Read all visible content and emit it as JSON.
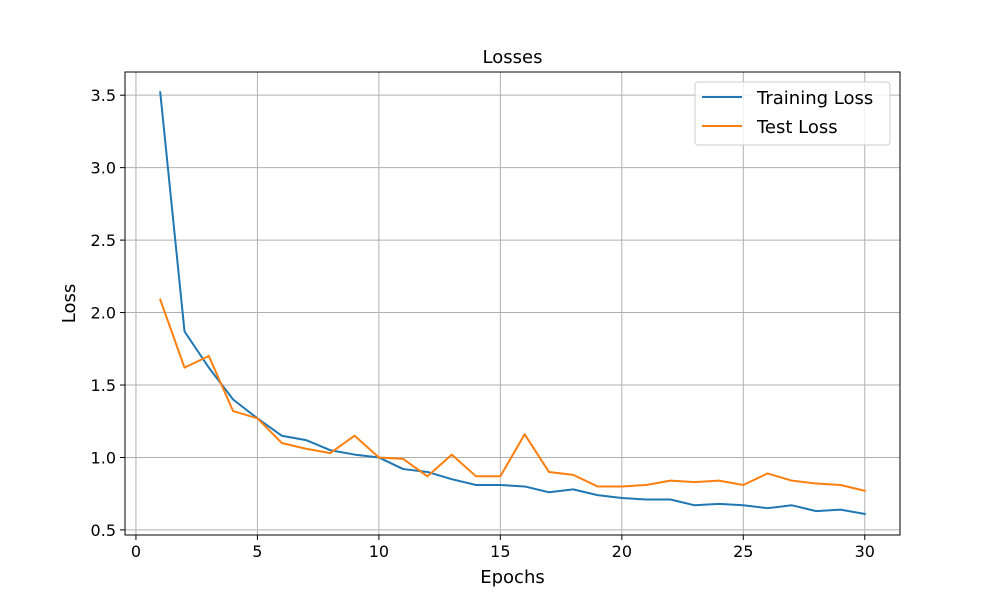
{
  "chart_data": {
    "type": "line",
    "title": "Losses",
    "xlabel": "Epochs",
    "ylabel": "Loss",
    "xlim": [
      -0.45,
      31.45
    ],
    "ylim": [
      0.465,
      3.66
    ],
    "xticks": [
      0,
      5,
      10,
      15,
      20,
      25,
      30
    ],
    "yticks": [
      0.5,
      1.0,
      1.5,
      2.0,
      2.5,
      3.0,
      3.5
    ],
    "xtick_labels": [
      "0",
      "5",
      "10",
      "15",
      "20",
      "25",
      "30"
    ],
    "ytick_labels": [
      "0.5",
      "1.0",
      "1.5",
      "2.0",
      "2.5",
      "3.0",
      "3.5"
    ],
    "grid": true,
    "legend_position": "top-right",
    "x": [
      1,
      2,
      3,
      4,
      5,
      6,
      7,
      8,
      9,
      10,
      11,
      12,
      13,
      14,
      15,
      16,
      17,
      18,
      19,
      20,
      21,
      22,
      23,
      24,
      25,
      26,
      27,
      28,
      29,
      30
    ],
    "series": [
      {
        "name": "Training Loss",
        "color": "#1f77b4",
        "values": [
          3.52,
          1.87,
          1.62,
          1.4,
          1.27,
          1.15,
          1.12,
          1.05,
          1.02,
          1.0,
          0.92,
          0.9,
          0.85,
          0.81,
          0.81,
          0.8,
          0.76,
          0.78,
          0.74,
          0.72,
          0.71,
          0.71,
          0.67,
          0.68,
          0.67,
          0.65,
          0.67,
          0.63,
          0.64,
          0.61
        ]
      },
      {
        "name": "Test Loss",
        "color": "#ff7f0e",
        "values": [
          2.09,
          1.62,
          1.7,
          1.32,
          1.27,
          1.1,
          1.06,
          1.03,
          1.15,
          1.0,
          0.99,
          0.87,
          1.02,
          0.87,
          0.87,
          1.16,
          0.9,
          0.88,
          0.8,
          0.8,
          0.81,
          0.84,
          0.83,
          0.84,
          0.81,
          0.89,
          0.84,
          0.82,
          0.81,
          0.77
        ]
      }
    ]
  }
}
